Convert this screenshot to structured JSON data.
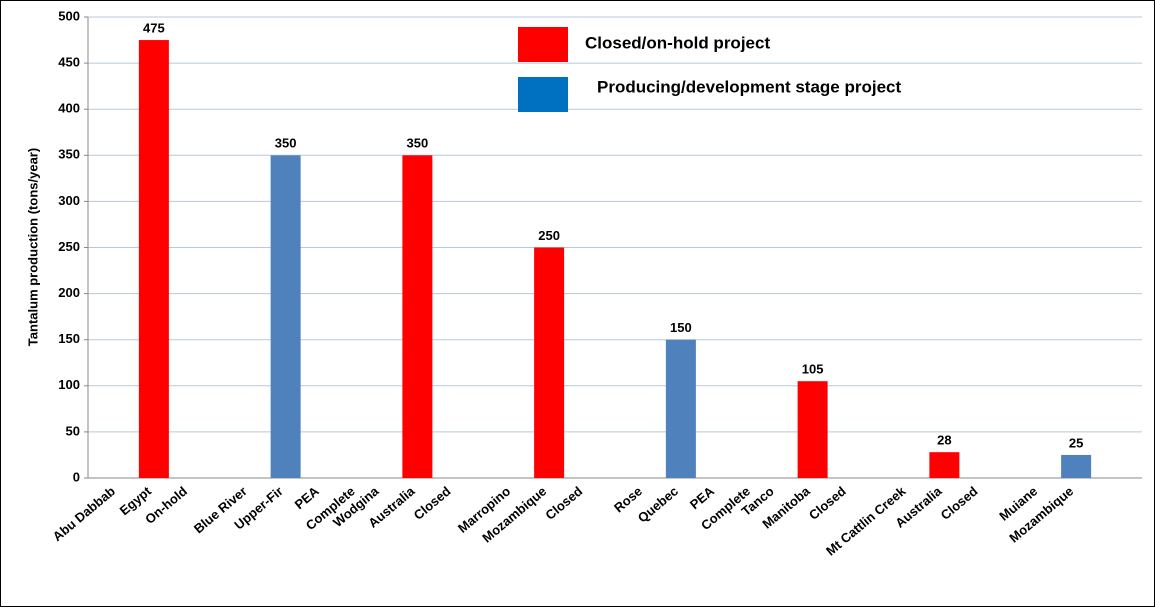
{
  "chart_data": {
    "type": "bar",
    "y_label": "Tantalum production (tons/year)",
    "categories": [
      [
        "Abu Dabbab",
        "Egypt",
        "On-hold"
      ],
      [
        "Blue River",
        "Upper-Fir",
        "PEA",
        "Complete"
      ],
      [
        "Wodgina",
        "Australia",
        "Closed"
      ],
      [
        "Marropino",
        "Mozambique",
        "Closed"
      ],
      [
        "Rose",
        "Quebec",
        "PEA",
        "Complete"
      ],
      [
        "Tanco",
        "Manitoba",
        "Closed"
      ],
      [
        "Mt Cattlin Creek",
        "Australia",
        "Closed"
      ],
      [
        "Muiane",
        "Mozambique"
      ]
    ],
    "values": [
      475,
      350,
      350,
      250,
      150,
      105,
      28,
      25
    ],
    "colors": [
      "#ff0000",
      "#4f81bd",
      "#ff0000",
      "#ff0000",
      "#4f81bd",
      "#ff0000",
      "#ff0000",
      "#4f81bd"
    ],
    "legend": [
      {
        "name": "Closed/on-hold project",
        "color": "#ff0000"
      },
      {
        "name": "Producing/development stage project",
        "color": "#0070c0"
      }
    ],
    "ylim": [
      0,
      500
    ],
    "yticks": [
      0,
      50,
      100,
      150,
      200,
      250,
      300,
      350,
      400,
      450,
      500
    ],
    "grid": true
  }
}
